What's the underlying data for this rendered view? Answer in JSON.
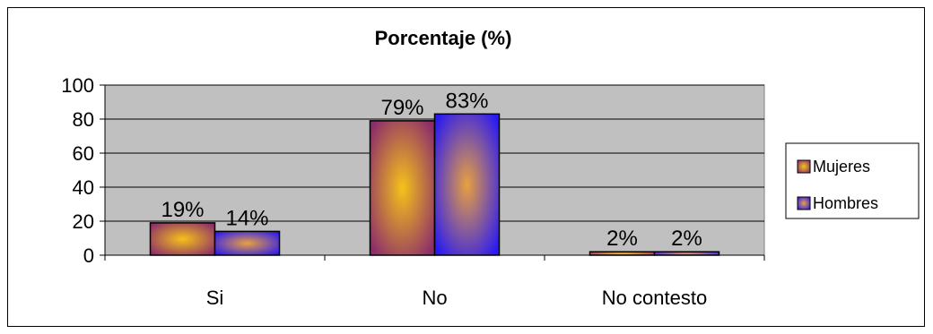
{
  "chart_data": {
    "type": "bar",
    "title": "Porcentaje (%)",
    "categories": [
      "Si",
      "No",
      "No contesto"
    ],
    "series": [
      {
        "name": "Mujeres",
        "values": [
          19,
          79,
          2
        ],
        "labels": [
          "19%",
          "79%",
          "2%"
        ],
        "color": "#8B2C6B",
        "center_color": "#F5C21A"
      },
      {
        "name": "Hombres",
        "values": [
          14,
          83,
          2
        ],
        "labels": [
          "14%",
          "83%",
          "2%"
        ],
        "color": "#2A1AF2",
        "center_color": "#E8A040"
      }
    ],
    "ylim": [
      0,
      100
    ],
    "yticks": [
      "0",
      "20",
      "40",
      "60",
      "80",
      "100"
    ],
    "grid": true,
    "legend_position": "right",
    "plot_background": "#C0C0C0"
  }
}
